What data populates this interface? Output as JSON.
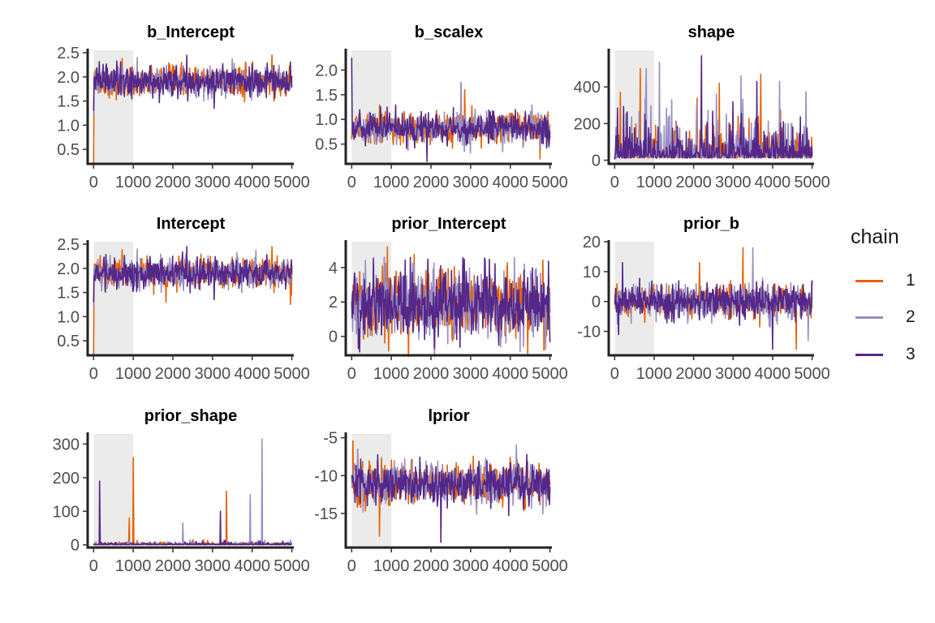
{
  "chart_data": {
    "type": "line",
    "legend": {
      "title": "chain",
      "placement": "right",
      "items": [
        {
          "label": "1",
          "color": "#e66101"
        },
        {
          "label": "2",
          "color": "#998ec3"
        },
        {
          "label": "3",
          "color": "#542788"
        }
      ]
    },
    "warmup_shaded": {
      "from": 0,
      "to": 1000,
      "color": "#ebebeb"
    },
    "x_ticks": [
      0,
      1000,
      2000,
      3000,
      4000,
      5000
    ],
    "panels": [
      {
        "title": "b_Intercept",
        "ylim": [
          0.2,
          2.55
        ],
        "yticks": [
          0.5,
          1.0,
          1.5,
          2.0,
          2.5
        ],
        "ytick_labels": [
          "0.5",
          "1.0",
          "1.5",
          "2.0",
          "2.5"
        ],
        "chain_center": 1.9,
        "chain_spread": 0.15,
        "start_values": [
          0.2,
          1.2,
          1.3
        ],
        "peaks": [
          [
            720,
            2.38
          ],
          [
            1100,
            2.4
          ],
          [
            2350,
            2.45
          ],
          [
            4500,
            2.45
          ]
        ],
        "dips": [
          [
            3040,
            1.35
          ],
          [
            4550,
            1.5
          ]
        ]
      },
      {
        "title": "b_scalex",
        "ylim": [
          0.1,
          2.4
        ],
        "yticks": [
          0.5,
          1.0,
          1.5,
          2.0
        ],
        "ytick_labels": [
          "0.5",
          "1.0",
          "1.5",
          "2.0"
        ],
        "chain_center": 0.83,
        "chain_spread": 0.15,
        "start_values": [
          0.6,
          0.8,
          2.25
        ],
        "peaks": [
          [
            2850,
            1.6
          ],
          [
            2760,
            1.75
          ]
        ],
        "dips": [
          [
            1900,
            0.15
          ],
          [
            4750,
            0.2
          ]
        ]
      },
      {
        "title": "shape",
        "ylim": [
          -20,
          600
        ],
        "yticks": [
          0,
          200,
          400
        ],
        "ytick_labels": [
          "0",
          "200",
          "400"
        ],
        "chain_center": 40,
        "chain_spread": 35,
        "start_values": [
          5,
          5,
          5
        ],
        "peaks": [
          [
            650,
            500
          ],
          [
            800,
            500
          ],
          [
            2200,
            570
          ],
          [
            2650,
            420
          ],
          [
            3200,
            460
          ],
          [
            3600,
            430
          ],
          [
            3700,
            470
          ]
        ],
        "dips": []
      },
      {
        "title": "Intercept",
        "ylim": [
          0.2,
          2.55
        ],
        "yticks": [
          0.5,
          1.0,
          1.5,
          2.0,
          2.5
        ],
        "ytick_labels": [
          "0.5",
          "1.0",
          "1.5",
          "2.0",
          "2.5"
        ],
        "chain_center": 1.9,
        "chain_spread": 0.15,
        "start_values": [
          0.2,
          1.2,
          1.3
        ],
        "peaks": [
          [
            720,
            2.38
          ],
          [
            1100,
            2.4
          ],
          [
            2350,
            2.45
          ],
          [
            4500,
            2.45
          ]
        ],
        "dips": [
          [
            3040,
            1.35
          ],
          [
            4550,
            1.5
          ]
        ]
      },
      {
        "title": "prior_Intercept",
        "ylim": [
          -1.1,
          5.5
        ],
        "yticks": [
          0,
          2,
          4
        ],
        "ytick_labels": [
          "0",
          "2",
          "4"
        ],
        "chain_center": 1.9,
        "chain_spread": 0.95,
        "start_values": [
          2,
          2,
          2
        ],
        "peaks": [
          [
            900,
            5.2
          ],
          [
            820,
            4.6
          ]
        ],
        "dips": [
          [
            200,
            -0.9
          ],
          [
            4850,
            -0.8
          ]
        ]
      },
      {
        "title": "prior_b",
        "ylim": [
          -18,
          20
        ],
        "yticks": [
          -10,
          0,
          10,
          20
        ],
        "ytick_labels": [
          "-10",
          "0",
          "10",
          "20"
        ],
        "chain_center": 0,
        "chain_spread": 2.8,
        "start_values": [
          0,
          0,
          0
        ],
        "peaks": [
          [
            3250,
            18
          ],
          [
            3500,
            18
          ],
          [
            200,
            13
          ],
          [
            2150,
            13
          ]
        ],
        "dips": [
          [
            4000,
            -16
          ],
          [
            4600,
            -16
          ],
          [
            4900,
            -13
          ],
          [
            100,
            -11
          ]
        ]
      },
      {
        "title": "prior_shape",
        "ylim": [
          -8,
          330
        ],
        "yticks": [
          0,
          100,
          200,
          300
        ],
        "ytick_labels": [
          "0",
          "100",
          "200",
          "300"
        ],
        "chain_center": 1.5,
        "chain_spread": 1.5,
        "start_values": [
          0,
          0,
          0
        ],
        "peaks": [
          [
            1000,
            260
          ],
          [
            4250,
            315
          ],
          [
            150,
            190
          ],
          [
            3350,
            160
          ],
          [
            3950,
            150
          ],
          [
            3200,
            100
          ],
          [
            900,
            80
          ],
          [
            2250,
            65
          ]
        ],
        "dips": []
      },
      {
        "title": "lprior",
        "ylim": [
          -19.5,
          -4.5
        ],
        "yticks": [
          -15,
          -10,
          -5
        ],
        "ytick_labels": [
          "-15",
          "-10",
          "-5"
        ],
        "chain_center": -11,
        "chain_spread": 1.4,
        "start_values": [
          -10,
          -10,
          -10
        ],
        "peaks": [
          [
            30,
            -5.4
          ],
          [
            150,
            -6.5
          ]
        ],
        "dips": [
          [
            2250,
            -18.8
          ],
          [
            700,
            -18
          ]
        ]
      }
    ]
  }
}
